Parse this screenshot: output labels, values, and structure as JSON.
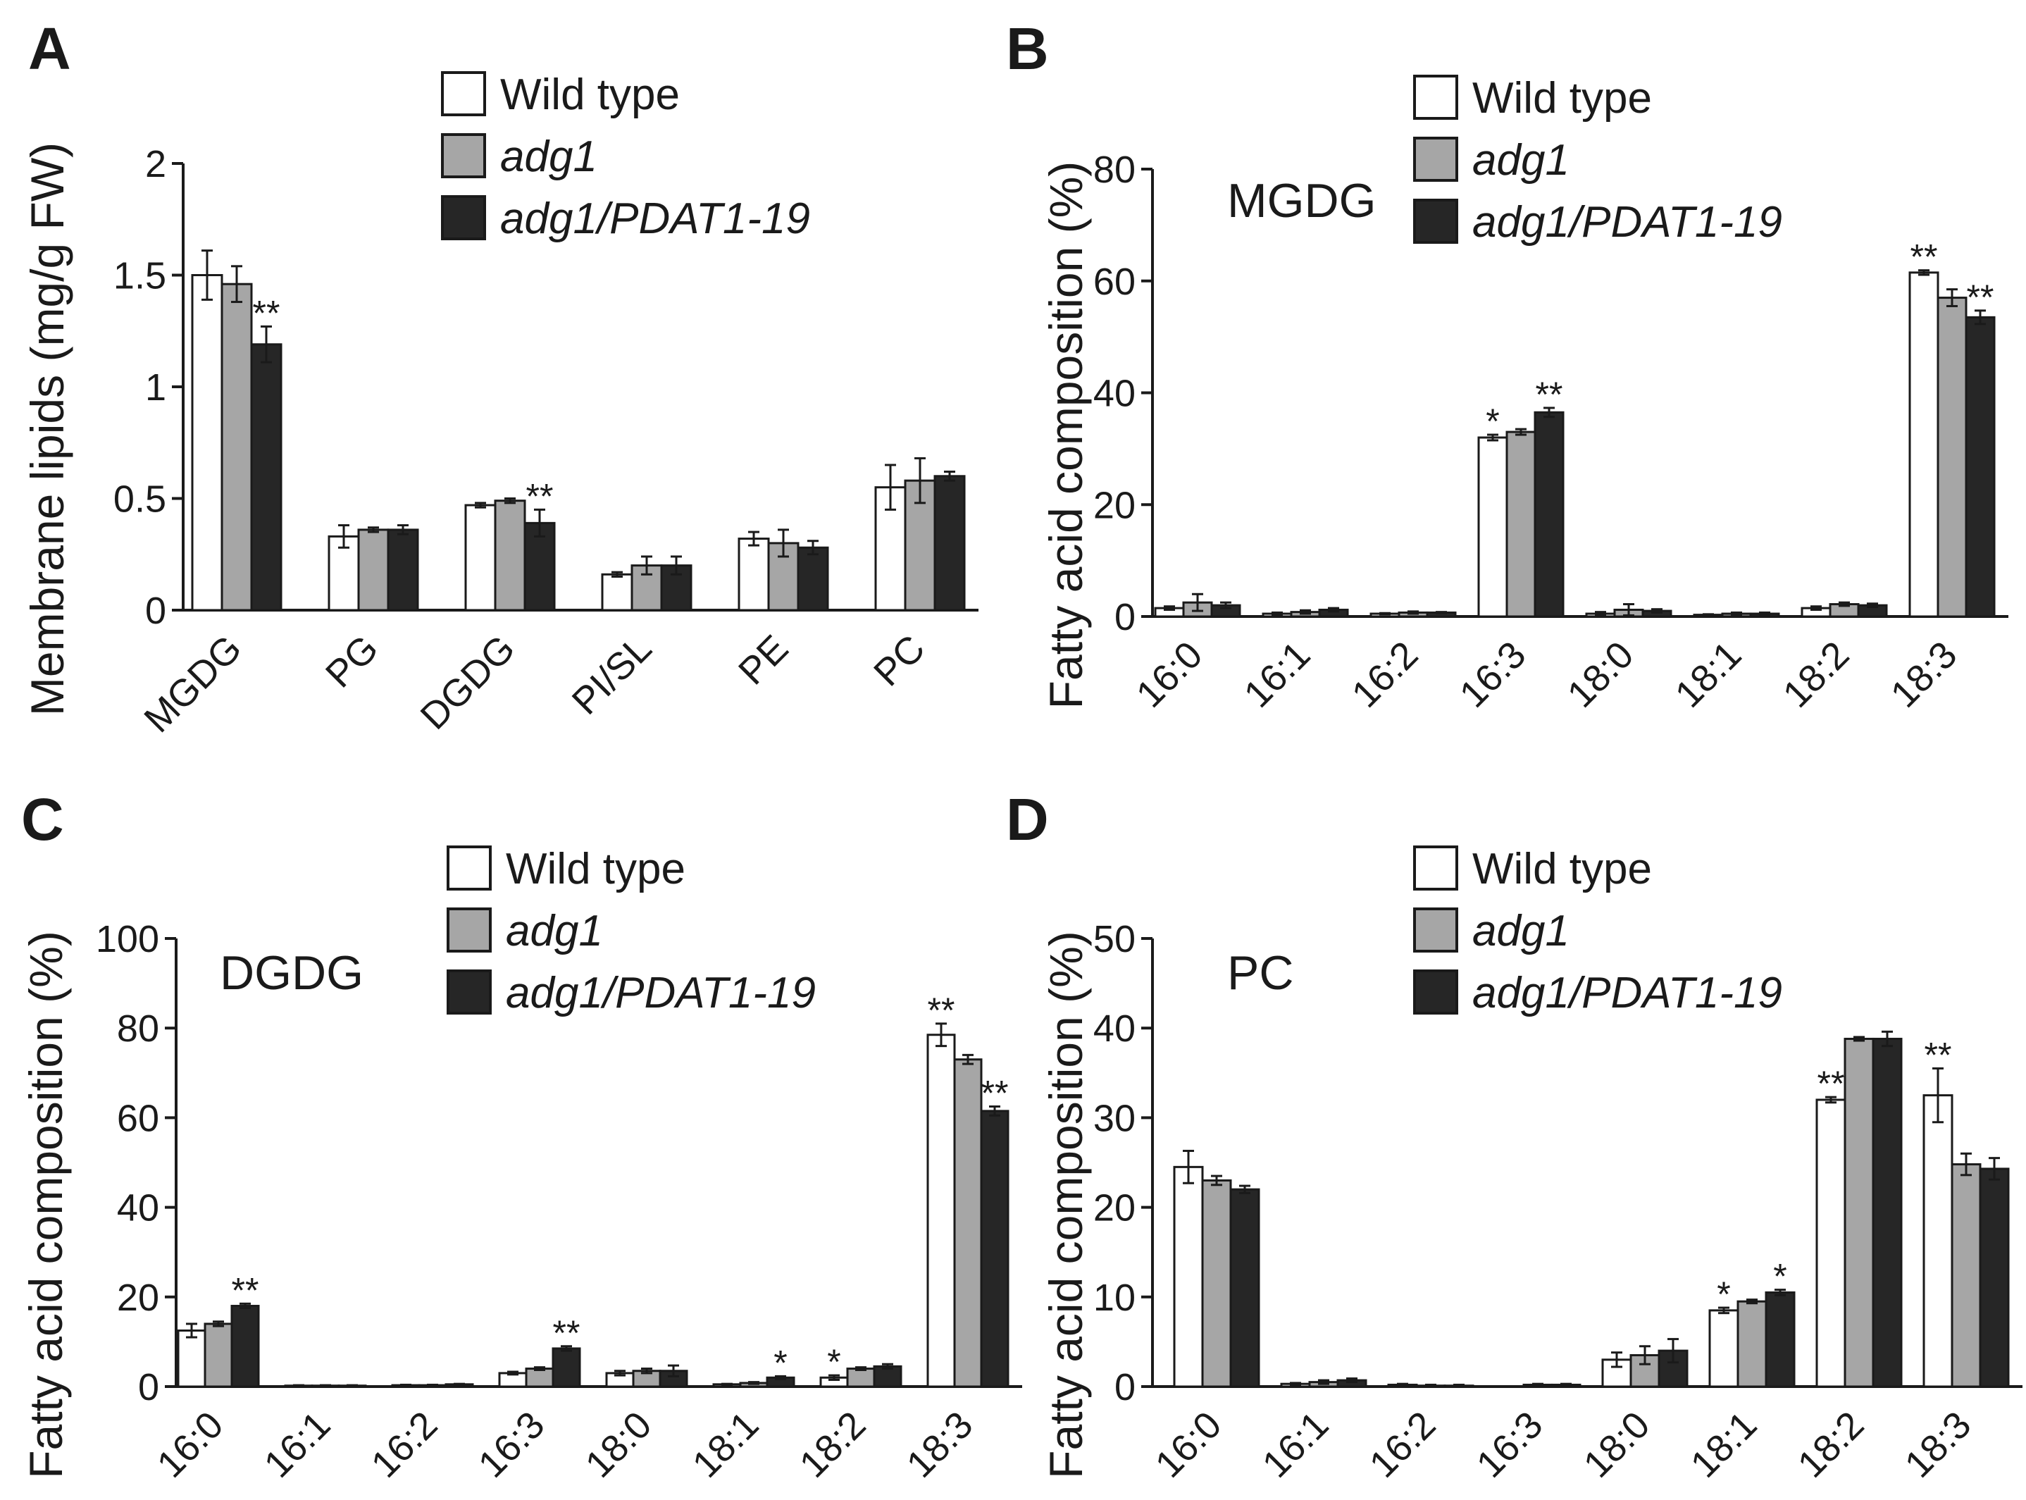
{
  "colors": {
    "wild_type": "#ffffff",
    "adg1": "#a6a6a6",
    "adg1_pdat": "#262626",
    "stroke": "#1a1a1a"
  },
  "legend": [
    {
      "label": "Wild type",
      "italic": false
    },
    {
      "label": "adg1",
      "italic": true
    },
    {
      "label": "adg1/PDAT1-19",
      "italic": true
    }
  ],
  "chart_data": [
    {
      "panel": "A",
      "type": "bar",
      "title": "",
      "xlabel": "",
      "ylabel": "Membrane lipids (mg/g FW)",
      "ylim": [
        0,
        2
      ],
      "yticks": [
        "0",
        "0.5",
        "1",
        "1.5",
        "2"
      ],
      "categories": [
        "MGDG",
        "PG",
        "DGDG",
        "PI/SL",
        "PE",
        "PC"
      ],
      "series": [
        {
          "name": "Wild type",
          "values": [
            1.5,
            0.33,
            0.47,
            0.16,
            0.32,
            0.55
          ],
          "errors": [
            0.11,
            0.05,
            0.01,
            0.01,
            0.03,
            0.1
          ]
        },
        {
          "name": "adg1",
          "values": [
            1.46,
            0.36,
            0.49,
            0.2,
            0.3,
            0.58
          ],
          "errors": [
            0.08,
            0.01,
            0.01,
            0.04,
            0.06,
            0.1
          ]
        },
        {
          "name": "adg1/PDAT1-19",
          "values": [
            1.19,
            0.36,
            0.39,
            0.2,
            0.28,
            0.6
          ],
          "errors": [
            0.08,
            0.02,
            0.06,
            0.04,
            0.03,
            0.02
          ]
        }
      ],
      "significance": [
        {
          "category": "MGDG",
          "series": "adg1/PDAT1-19",
          "label": "**"
        },
        {
          "category": "DGDG",
          "series": "adg1/PDAT1-19",
          "label": "**"
        }
      ]
    },
    {
      "panel": "B",
      "type": "bar",
      "title": "MGDG",
      "xlabel": "",
      "ylabel": "Fatty acid composition (%)",
      "ylim": [
        0,
        80
      ],
      "yticks": [
        "0",
        "20",
        "40",
        "60",
        "80"
      ],
      "categories": [
        "16:0",
        "16:1",
        "16:2",
        "16:3",
        "18:0",
        "18:1",
        "18:2",
        "18:3"
      ],
      "series": [
        {
          "name": "Wild type",
          "values": [
            1.5,
            0.5,
            0.5,
            32,
            0.5,
            0.3,
            1.5,
            61.5
          ],
          "errors": [
            0.3,
            0.2,
            0.1,
            0.5,
            0.3,
            0.1,
            0.3,
            0.4
          ]
        },
        {
          "name": "adg1",
          "values": [
            2.5,
            0.8,
            0.7,
            33,
            1.2,
            0.5,
            2.2,
            57
          ],
          "errors": [
            1.5,
            0.3,
            0.2,
            0.5,
            1.0,
            0.2,
            0.3,
            1.5
          ]
        },
        {
          "name": "adg1/PDAT1-19",
          "values": [
            2,
            1.2,
            0.7,
            36.5,
            1.0,
            0.5,
            2,
            53.5
          ],
          "errors": [
            0.5,
            0.3,
            0.1,
            0.8,
            0.3,
            0.2,
            0.3,
            1.2
          ]
        }
      ],
      "significance": [
        {
          "category": "16:3",
          "series": "Wild type",
          "label": "*"
        },
        {
          "category": "16:3",
          "series": "adg1/PDAT1-19",
          "label": "**"
        },
        {
          "category": "18:3",
          "series": "Wild type",
          "label": "**"
        },
        {
          "category": "18:3",
          "series": "adg1/PDAT1-19",
          "label": "**"
        }
      ]
    },
    {
      "panel": "C",
      "type": "bar",
      "title": "DGDG",
      "xlabel": "",
      "ylabel": "Fatty acid composition (%)",
      "ylim": [
        0,
        100
      ],
      "yticks": [
        "0",
        "20",
        "40",
        "60",
        "80",
        "100"
      ],
      "categories": [
        "16:0",
        "16:1",
        "16:2",
        "16:3",
        "18:0",
        "18:1",
        "18:2",
        "18:3"
      ],
      "series": [
        {
          "name": "Wild type",
          "values": [
            12.5,
            0.2,
            0.3,
            3,
            3,
            0.5,
            2,
            78.5
          ],
          "errors": [
            1.5,
            0.1,
            0.1,
            0.3,
            0.5,
            0.1,
            0.5,
            2.5
          ]
        },
        {
          "name": "adg1",
          "values": [
            14,
            0.2,
            0.3,
            4,
            3.5,
            0.8,
            4,
            73
          ],
          "errors": [
            0.5,
            0.1,
            0.1,
            0.3,
            0.5,
            0.2,
            0.3,
            1.0
          ]
        },
        {
          "name": "adg1/PDAT1-19",
          "values": [
            18,
            0.2,
            0.5,
            8.5,
            3.5,
            2,
            4.5,
            61.5
          ],
          "errors": [
            0.5,
            0.1,
            0.1,
            0.5,
            1.2,
            0.3,
            0.5,
            1.0
          ]
        }
      ],
      "significance": [
        {
          "category": "16:0",
          "series": "adg1/PDAT1-19",
          "label": "**"
        },
        {
          "category": "16:3",
          "series": "adg1/PDAT1-19",
          "label": "**"
        },
        {
          "category": "18:1",
          "series": "adg1/PDAT1-19",
          "label": "*"
        },
        {
          "category": "18:2",
          "series": "Wild type",
          "label": "*"
        },
        {
          "category": "18:3",
          "series": "Wild type",
          "label": "**"
        },
        {
          "category": "18:3",
          "series": "adg1/PDAT1-19",
          "label": "**"
        }
      ]
    },
    {
      "panel": "D",
      "type": "bar",
      "title": "PC",
      "xlabel": "",
      "ylabel": "Fatty acid composition (%)",
      "ylim": [
        0,
        50
      ],
      "yticks": [
        "0",
        "10",
        "20",
        "30",
        "40",
        "50"
      ],
      "categories": [
        "16:0",
        "16:1",
        "16:2",
        "16:3",
        "18:0",
        "18:1",
        "18:2",
        "18:3"
      ],
      "series": [
        {
          "name": "Wild type",
          "values": [
            24.5,
            0.3,
            0.2,
            0,
            3,
            8.5,
            32,
            32.5
          ],
          "errors": [
            1.8,
            0.1,
            0.1,
            0,
            0.8,
            0.3,
            0.3,
            3.0
          ]
        },
        {
          "name": "adg1",
          "values": [
            23,
            0.5,
            0.1,
            0.2,
            3.5,
            9.5,
            38.8,
            24.8
          ],
          "errors": [
            0.5,
            0.2,
            0.1,
            0.1,
            1.0,
            0.2,
            0.2,
            1.2
          ]
        },
        {
          "name": "adg1/PDAT1-19",
          "values": [
            22,
            0.7,
            0.1,
            0.2,
            4,
            10.5,
            38.8,
            24.3
          ],
          "errors": [
            0.4,
            0.2,
            0.1,
            0.1,
            1.3,
            0.3,
            0.8,
            1.2
          ]
        }
      ],
      "significance": [
        {
          "category": "18:1",
          "series": "Wild type",
          "label": "*"
        },
        {
          "category": "18:1",
          "series": "adg1/PDAT1-19",
          "label": "*"
        },
        {
          "category": "18:2",
          "series": "Wild type",
          "label": "**"
        },
        {
          "category": "18:3",
          "series": "Wild type",
          "label": "**"
        }
      ]
    }
  ]
}
